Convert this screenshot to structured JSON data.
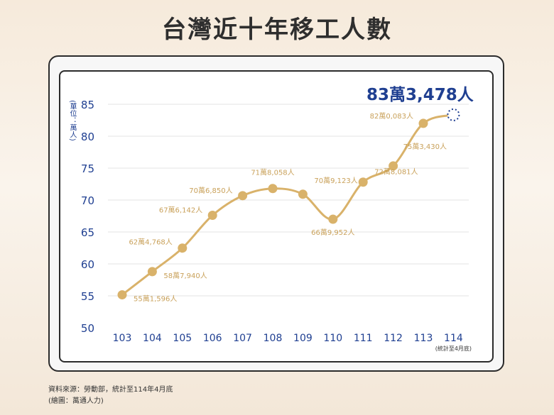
{
  "title": "台灣近十年移工人數",
  "highlight_value": "83萬3,478人",
  "unit_label": "(單位：萬人)",
  "source": "資料來源：勞動部，統計至114年4月底",
  "credit": "(繪圖：萬通人力)",
  "colors": {
    "line": "#d9b26a",
    "axis_text": "#1f3f91",
    "point_label": "#c9a15a",
    "grid": "#e3e3e3"
  },
  "chart_data": {
    "type": "line",
    "title": "台灣近十年移工人數",
    "categories": [
      "103",
      "104",
      "105",
      "106",
      "107",
      "108",
      "109",
      "110",
      "111",
      "112",
      "113",
      "114"
    ],
    "values": [
      55.1596,
      58.794,
      62.4768,
      67.6142,
      70.685,
      71.8058,
      70.9123,
      66.9952,
      72.8081,
      75.343,
      82.0083,
      83.3478
    ],
    "point_labels": [
      "55萬1,596人",
      "58萬7,940人",
      "62萬4,768人",
      "67萬6,142人",
      "70萬6,850人",
      "71萬8,058人",
      "70萬9,123人",
      "66萬9,952人",
      "72萬8,081人",
      "75萬3,430人",
      "82萬0,083人",
      ""
    ],
    "last_category_note": "(統計至4月底)",
    "yticks": [
      50,
      55,
      60,
      65,
      70,
      75,
      80,
      85
    ],
    "ylim": [
      50,
      85
    ],
    "xlabel": "",
    "ylabel": "(單位：萬人)",
    "grid": true
  }
}
